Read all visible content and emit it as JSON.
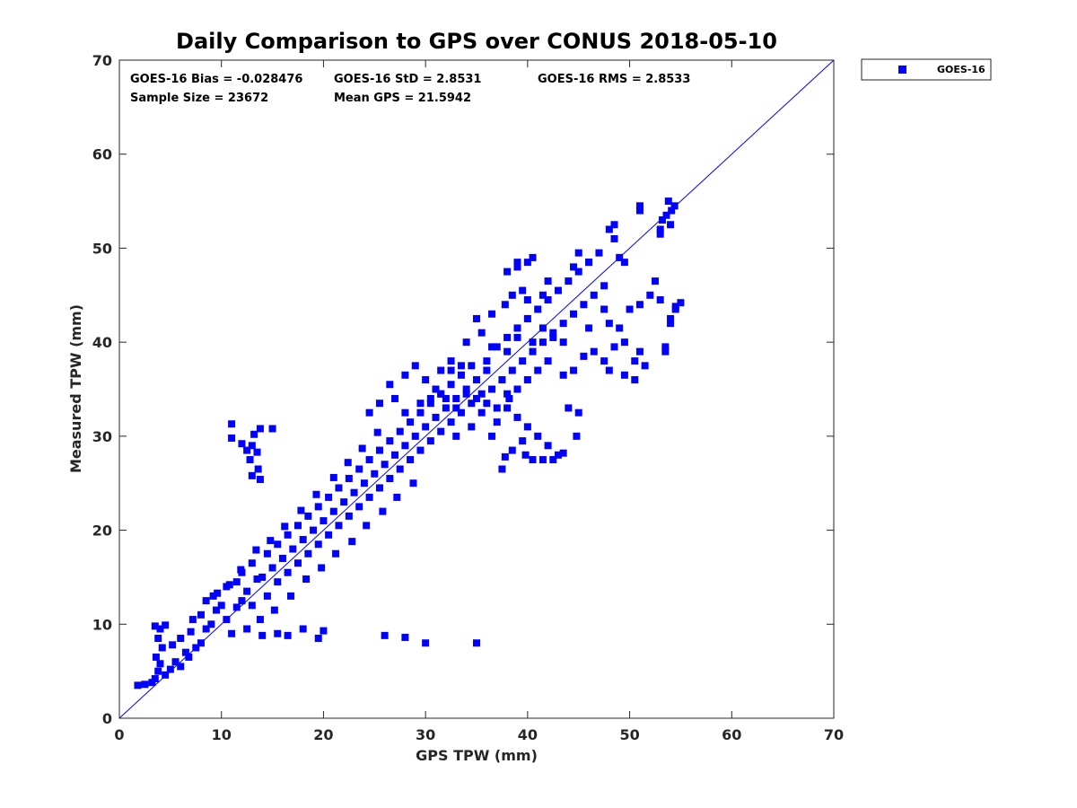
{
  "chart_data": {
    "type": "scatter",
    "title": "Daily Comparison to GPS over CONUS 2018-05-10",
    "xlabel": "GPS TPW (mm)",
    "ylabel": "Measured TPW (mm)",
    "xlim": [
      0,
      70
    ],
    "ylim": [
      0,
      70
    ],
    "xticks": [
      0,
      10,
      20,
      30,
      40,
      50,
      60,
      70
    ],
    "yticks": [
      0,
      10,
      20,
      30,
      40,
      50,
      60,
      70
    ],
    "grid": false,
    "legend_position": "outside top-right",
    "series": [
      {
        "name": "GOES-16",
        "color": "#0000ff",
        "marker": "square",
        "points": [
          [
            1.8,
            3.5
          ],
          [
            2.5,
            3.6
          ],
          [
            3.2,
            3.8
          ],
          [
            3.5,
            4.2
          ],
          [
            3.8,
            5.0
          ],
          [
            4.0,
            5.8
          ],
          [
            3.6,
            6.5
          ],
          [
            4.2,
            7.5
          ],
          [
            3.8,
            8.5
          ],
          [
            4.0,
            9.5
          ],
          [
            3.5,
            9.8
          ],
          [
            4.5,
            9.9
          ],
          [
            4.5,
            4.6
          ],
          [
            5.0,
            5.2
          ],
          [
            5.5,
            6.0
          ],
          [
            6.0,
            5.5
          ],
          [
            6.5,
            7.0
          ],
          [
            5.2,
            7.8
          ],
          [
            6.0,
            8.5
          ],
          [
            7.0,
            9.2
          ],
          [
            6.8,
            6.5
          ],
          [
            7.5,
            7.5
          ],
          [
            8.0,
            8.0
          ],
          [
            8.5,
            9.5
          ],
          [
            7.2,
            10.5
          ],
          [
            8.0,
            11.0
          ],
          [
            9.0,
            10.0
          ],
          [
            9.5,
            11.5
          ],
          [
            10.0,
            12.0
          ],
          [
            9.2,
            13.0
          ],
          [
            8.5,
            12.5
          ],
          [
            10.5,
            10.5
          ],
          [
            11.0,
            9.0
          ],
          [
            11.5,
            11.8
          ],
          [
            12.0,
            12.5
          ],
          [
            10.5,
            14.0
          ],
          [
            11.5,
            14.5
          ],
          [
            12.5,
            13.5
          ],
          [
            13.0,
            12.0
          ],
          [
            13.5,
            14.8
          ],
          [
            12.0,
            15.5
          ],
          [
            14.0,
            15.0
          ],
          [
            14.5,
            13.0
          ],
          [
            13.0,
            16.5
          ],
          [
            15.0,
            16.0
          ],
          [
            15.5,
            14.5
          ],
          [
            14.5,
            17.5
          ],
          [
            16.0,
            17.0
          ],
          [
            16.5,
            15.5
          ],
          [
            15.5,
            18.5
          ],
          [
            17.0,
            18.0
          ],
          [
            17.5,
            16.5
          ],
          [
            16.5,
            19.5
          ],
          [
            18.0,
            19.0
          ],
          [
            18.5,
            17.5
          ],
          [
            17.5,
            20.5
          ],
          [
            19.0,
            20.0
          ],
          [
            19.5,
            18.5
          ],
          [
            18.5,
            21.5
          ],
          [
            20.0,
            21.0
          ],
          [
            20.5,
            19.5
          ],
          [
            19.5,
            22.5
          ],
          [
            21.0,
            22.0
          ],
          [
            21.5,
            20.5
          ],
          [
            20.5,
            23.5
          ],
          [
            22.0,
            23.0
          ],
          [
            22.5,
            21.5
          ],
          [
            21.5,
            24.5
          ],
          [
            23.0,
            24.0
          ],
          [
            23.5,
            22.5
          ],
          [
            22.5,
            25.5
          ],
          [
            24.0,
            25.0
          ],
          [
            24.5,
            23.5
          ],
          [
            23.5,
            26.5
          ],
          [
            25.0,
            26.0
          ],
          [
            25.5,
            24.5
          ],
          [
            24.5,
            27.5
          ],
          [
            26.0,
            27.0
          ],
          [
            26.5,
            25.5
          ],
          [
            25.5,
            28.5
          ],
          [
            27.0,
            28.0
          ],
          [
            27.5,
            26.5
          ],
          [
            26.5,
            29.5
          ],
          [
            28.0,
            29.0
          ],
          [
            28.5,
            27.5
          ],
          [
            27.5,
            30.5
          ],
          [
            29.0,
            30.0
          ],
          [
            29.5,
            28.5
          ],
          [
            28.5,
            31.5
          ],
          [
            30.0,
            31.0
          ],
          [
            30.5,
            29.5
          ],
          [
            29.5,
            32.5
          ],
          [
            31.0,
            32.0
          ],
          [
            31.5,
            30.5
          ],
          [
            30.5,
            33.5
          ],
          [
            32.0,
            33.0
          ],
          [
            32.5,
            31.5
          ],
          [
            31.5,
            34.5
          ],
          [
            33.0,
            34.0
          ],
          [
            33.5,
            32.5
          ],
          [
            32.5,
            35.5
          ],
          [
            34.0,
            35.0
          ],
          [
            34.5,
            33.5
          ],
          [
            33.5,
            36.5
          ],
          [
            35.0,
            36.0
          ],
          [
            35.5,
            34.5
          ],
          [
            34.5,
            37.5
          ],
          [
            36.0,
            37.0
          ],
          [
            9.6,
            13.3
          ],
          [
            10.8,
            14.2
          ],
          [
            11.9,
            15.8
          ],
          [
            13.4,
            17.9
          ],
          [
            14.8,
            18.9
          ],
          [
            16.2,
            20.4
          ],
          [
            17.8,
            22.1
          ],
          [
            19.3,
            23.8
          ],
          [
            21.0,
            25.6
          ],
          [
            22.4,
            27.2
          ],
          [
            23.8,
            28.7
          ],
          [
            25.3,
            30.4
          ],
          [
            12.5,
            9.5
          ],
          [
            13.8,
            10.5
          ],
          [
            15.2,
            11.5
          ],
          [
            16.8,
            13.0
          ],
          [
            18.3,
            14.8
          ],
          [
            19.8,
            16.0
          ],
          [
            21.2,
            17.5
          ],
          [
            22.8,
            18.8
          ],
          [
            24.2,
            20.5
          ],
          [
            25.8,
            22.0
          ],
          [
            27.2,
            23.5
          ],
          [
            28.8,
            25.0
          ],
          [
            14.0,
            8.8
          ],
          [
            15.5,
            9.0
          ],
          [
            16.5,
            8.8
          ],
          [
            18.0,
            9.5
          ],
          [
            20.0,
            9.3
          ],
          [
            19.5,
            8.5
          ],
          [
            28.0,
            8.6
          ],
          [
            30.0,
            8.0
          ],
          [
            35.0,
            8.0
          ],
          [
            26.0,
            8.8
          ],
          [
            11.0,
            31.3
          ],
          [
            11.0,
            29.8
          ],
          [
            12.5,
            28.5
          ],
          [
            13.2,
            30.2
          ],
          [
            13.8,
            30.8
          ],
          [
            15.0,
            30.8
          ],
          [
            13.0,
            29.0
          ],
          [
            13.5,
            28.3
          ],
          [
            12.8,
            27.5
          ],
          [
            13.6,
            26.5
          ],
          [
            13.0,
            25.8
          ],
          [
            13.8,
            25.4
          ],
          [
            12.0,
            29.2
          ],
          [
            36.0,
            38.0
          ],
          [
            37.0,
            39.5
          ],
          [
            38.0,
            40.5
          ],
          [
            39.0,
            41.5
          ],
          [
            40.0,
            42.5
          ],
          [
            41.0,
            43.5
          ],
          [
            42.0,
            44.5
          ],
          [
            43.0,
            45.5
          ],
          [
            44.0,
            46.5
          ],
          [
            45.0,
            47.5
          ],
          [
            46.0,
            48.5
          ],
          [
            47.0,
            49.5
          ],
          [
            36.5,
            35.0
          ],
          [
            37.5,
            36.0
          ],
          [
            38.5,
            37.0
          ],
          [
            39.5,
            38.0
          ],
          [
            40.5,
            39.0
          ],
          [
            41.5,
            40.0
          ],
          [
            42.5,
            41.0
          ],
          [
            43.5,
            42.0
          ],
          [
            44.5,
            43.0
          ],
          [
            45.5,
            44.0
          ],
          [
            46.5,
            45.0
          ],
          [
            47.5,
            46.0
          ],
          [
            38.0,
            33.0
          ],
          [
            39.0,
            32.0
          ],
          [
            40.0,
            31.0
          ],
          [
            41.0,
            30.0
          ],
          [
            42.0,
            29.0
          ],
          [
            43.0,
            28.0
          ],
          [
            44.0,
            33.0
          ],
          [
            45.0,
            32.5
          ],
          [
            39.5,
            29.5
          ],
          [
            38.5,
            28.5
          ],
          [
            37.5,
            26.5
          ],
          [
            40.5,
            27.5
          ],
          [
            41.5,
            27.5
          ],
          [
            42.5,
            27.5
          ],
          [
            43.5,
            28.2
          ],
          [
            36.5,
            30.0
          ],
          [
            37.0,
            31.5
          ],
          [
            35.5,
            32.5
          ],
          [
            34.5,
            31.0
          ],
          [
            33.0,
            30.0
          ],
          [
            37.8,
            27.8
          ],
          [
            39.8,
            28.0
          ],
          [
            44.8,
            30.0
          ],
          [
            38.2,
            34.0
          ],
          [
            43.5,
            36.5
          ],
          [
            44.5,
            37.0
          ],
          [
            45.5,
            38.5
          ],
          [
            46.5,
            39.0
          ],
          [
            47.5,
            38.0
          ],
          [
            48.5,
            39.5
          ],
          [
            49.5,
            40.0
          ],
          [
            50.5,
            38.0
          ],
          [
            48.0,
            37.0
          ],
          [
            49.5,
            36.5
          ],
          [
            50.5,
            36.0
          ],
          [
            51.0,
            39.0
          ],
          [
            51.5,
            37.5
          ],
          [
            53.5,
            39.5
          ],
          [
            53.5,
            39.0
          ],
          [
            49.0,
            41.5
          ],
          [
            50.0,
            43.5
          ],
          [
            51.0,
            44.0
          ],
          [
            52.0,
            45.0
          ],
          [
            52.5,
            46.5
          ],
          [
            53.0,
            44.5
          ],
          [
            48.0,
            42.0
          ],
          [
            47.5,
            43.5
          ],
          [
            46.0,
            41.5
          ],
          [
            54.0,
            42.0
          ],
          [
            54.0,
            42.5
          ],
          [
            54.5,
            43.5
          ],
          [
            55.0,
            44.2
          ],
          [
            54.5,
            43.8
          ],
          [
            53.0,
            51.5
          ],
          [
            53.0,
            52.0
          ],
          [
            54.0,
            52.5
          ],
          [
            53.2,
            53.0
          ],
          [
            53.6,
            53.5
          ],
          [
            54.1,
            54.0
          ],
          [
            53.8,
            55.0
          ],
          [
            54.4,
            54.5
          ],
          [
            51.0,
            54.5
          ],
          [
            51.0,
            54.0
          ],
          [
            48.5,
            52.5
          ],
          [
            48.0,
            52.0
          ],
          [
            48.5,
            51.0
          ],
          [
            49.0,
            49.0
          ],
          [
            49.5,
            48.5
          ],
          [
            45.0,
            49.5
          ],
          [
            44.5,
            48.0
          ],
          [
            46.0,
            48.5
          ],
          [
            40.0,
            48.5
          ],
          [
            40.5,
            49.0
          ],
          [
            39.0,
            48.5
          ],
          [
            39.0,
            48.0
          ],
          [
            38.0,
            47.5
          ],
          [
            37.8,
            44.0
          ],
          [
            38.5,
            45.0
          ],
          [
            39.5,
            45.5
          ],
          [
            40.0,
            44.5
          ],
          [
            41.5,
            45.0
          ],
          [
            42.0,
            46.5
          ],
          [
            36.5,
            43.0
          ],
          [
            35.0,
            42.5
          ],
          [
            34.0,
            40.0
          ],
          [
            35.5,
            41.0
          ],
          [
            36.5,
            39.5
          ],
          [
            38.0,
            39.0
          ],
          [
            39.0,
            40.5
          ],
          [
            40.5,
            40.0
          ],
          [
            41.5,
            41.5
          ],
          [
            42.5,
            40.5
          ],
          [
            43.5,
            40.0
          ],
          [
            42.0,
            38.0
          ],
          [
            41.0,
            37.0
          ],
          [
            40.0,
            36.0
          ],
          [
            39.0,
            35.0
          ],
          [
            38.0,
            34.5
          ],
          [
            37.0,
            33.0
          ],
          [
            36.0,
            33.5
          ],
          [
            35.0,
            34.0
          ],
          [
            34.0,
            34.5
          ],
          [
            33.0,
            33.0
          ],
          [
            32.0,
            34.0
          ],
          [
            31.0,
            35.0
          ],
          [
            30.0,
            36.0
          ],
          [
            29.0,
            37.5
          ],
          [
            28.0,
            36.5
          ],
          [
            28.0,
            32.5
          ],
          [
            29.5,
            33.5
          ],
          [
            30.5,
            34.0
          ],
          [
            31.5,
            34.5
          ],
          [
            32.5,
            37.0
          ],
          [
            33.5,
            37.5
          ],
          [
            32.5,
            38.0
          ],
          [
            31.5,
            37.0
          ],
          [
            27.0,
            34.0
          ],
          [
            26.5,
            35.5
          ],
          [
            25.5,
            33.5
          ],
          [
            24.5,
            32.5
          ]
        ]
      }
    ],
    "identity_line": {
      "from": [
        0,
        0
      ],
      "to": [
        70,
        70
      ],
      "color": "#0000ff"
    },
    "annotations": {
      "bias": "GOES-16 Bias = -0.028476",
      "std": "GOES-16 StD = 2.8531",
      "rms": "GOES-16 RMS = 2.8533",
      "sample_size": "Sample Size = 23672",
      "mean_gps": "Mean GPS = 21.5942"
    }
  }
}
